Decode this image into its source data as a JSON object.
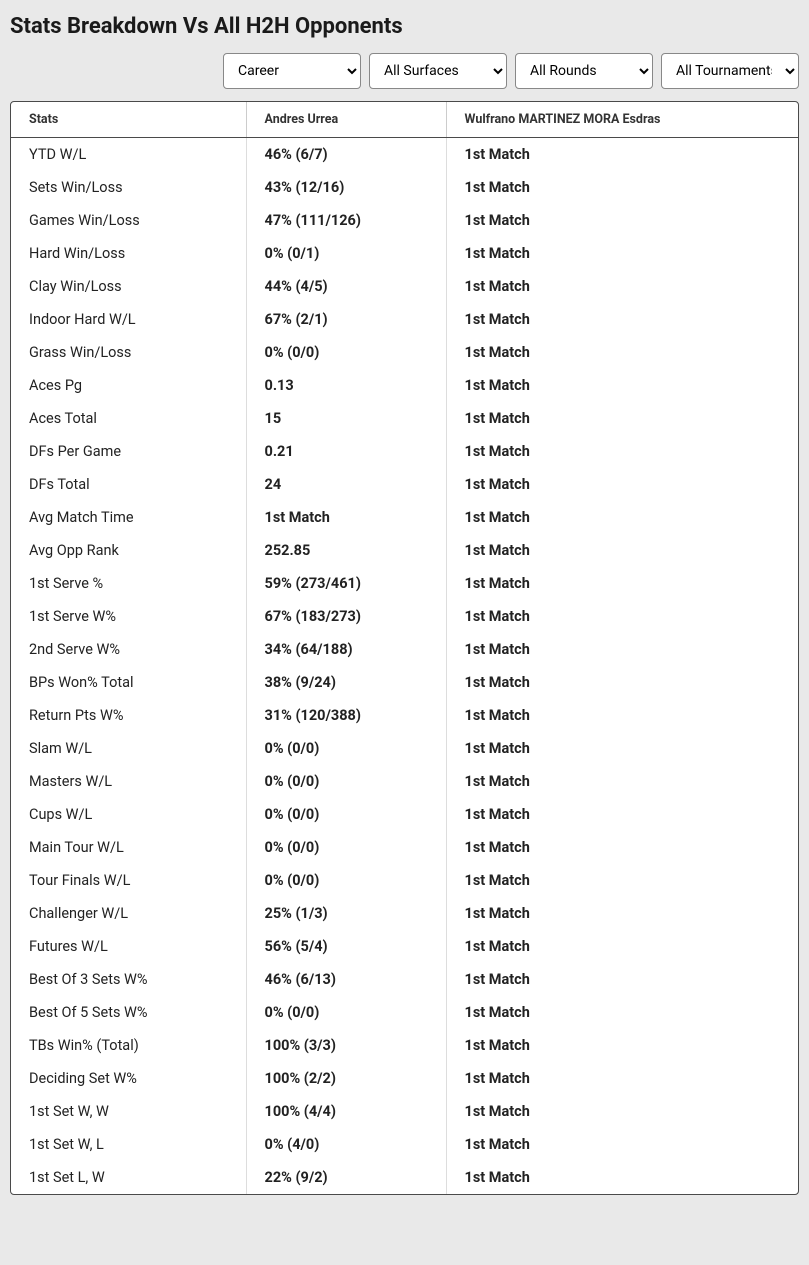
{
  "title": "Stats Breakdown Vs All H2H Opponents",
  "filters": {
    "career": "Career",
    "surfaces": "All Surfaces",
    "rounds": "All Rounds",
    "tournaments": "All Tournaments"
  },
  "headers": {
    "stats": "Stats",
    "player1": "Andres Urrea",
    "player2": "Wulfrano MARTINEZ MORA Esdras"
  },
  "rows": [
    {
      "stat": "YTD W/L",
      "p1": "46% (6/7)",
      "p2": "1st Match"
    },
    {
      "stat": "Sets Win/Loss",
      "p1": "43% (12/16)",
      "p2": "1st Match"
    },
    {
      "stat": "Games Win/Loss",
      "p1": "47% (111/126)",
      "p2": "1st Match"
    },
    {
      "stat": "Hard Win/Loss",
      "p1": "0% (0/1)",
      "p2": "1st Match"
    },
    {
      "stat": "Clay Win/Loss",
      "p1": "44% (4/5)",
      "p2": "1st Match"
    },
    {
      "stat": "Indoor Hard W/L",
      "p1": "67% (2/1)",
      "p2": "1st Match"
    },
    {
      "stat": "Grass Win/Loss",
      "p1": "0% (0/0)",
      "p2": "1st Match"
    },
    {
      "stat": "Aces Pg",
      "p1": "0.13",
      "p2": "1st Match"
    },
    {
      "stat": "Aces Total",
      "p1": "15",
      "p2": "1st Match"
    },
    {
      "stat": "DFs Per Game",
      "p1": "0.21",
      "p2": "1st Match"
    },
    {
      "stat": "DFs Total",
      "p1": "24",
      "p2": "1st Match"
    },
    {
      "stat": "Avg Match Time",
      "p1": "1st Match",
      "p2": "1st Match"
    },
    {
      "stat": "Avg Opp Rank",
      "p1": "252.85",
      "p2": "1st Match"
    },
    {
      "stat": "1st Serve %",
      "p1": "59% (273/461)",
      "p2": "1st Match"
    },
    {
      "stat": "1st Serve W%",
      "p1": "67% (183/273)",
      "p2": "1st Match"
    },
    {
      "stat": "2nd Serve W%",
      "p1": "34% (64/188)",
      "p2": "1st Match"
    },
    {
      "stat": "BPs Won% Total",
      "p1": "38% (9/24)",
      "p2": "1st Match"
    },
    {
      "stat": "Return Pts W%",
      "p1": "31% (120/388)",
      "p2": "1st Match"
    },
    {
      "stat": "Slam W/L",
      "p1": "0% (0/0)",
      "p2": "1st Match"
    },
    {
      "stat": "Masters W/L",
      "p1": "0% (0/0)",
      "p2": "1st Match"
    },
    {
      "stat": "Cups W/L",
      "p1": "0% (0/0)",
      "p2": "1st Match"
    },
    {
      "stat": "Main Tour W/L",
      "p1": "0% (0/0)",
      "p2": "1st Match"
    },
    {
      "stat": "Tour Finals W/L",
      "p1": "0% (0/0)",
      "p2": "1st Match"
    },
    {
      "stat": "Challenger W/L",
      "p1": "25% (1/3)",
      "p2": "1st Match"
    },
    {
      "stat": "Futures W/L",
      "p1": "56% (5/4)",
      "p2": "1st Match"
    },
    {
      "stat": "Best Of 3 Sets W%",
      "p1": "46% (6/13)",
      "p2": "1st Match"
    },
    {
      "stat": "Best Of 5 Sets W%",
      "p1": "0% (0/0)",
      "p2": "1st Match"
    },
    {
      "stat": "TBs Win% (Total)",
      "p1": "100% (3/3)",
      "p2": "1st Match"
    },
    {
      "stat": "Deciding Set W%",
      "p1": "100% (2/2)",
      "p2": "1st Match"
    },
    {
      "stat": "1st Set W, W",
      "p1": "100% (4/4)",
      "p2": "1st Match"
    },
    {
      "stat": "1st Set W, L",
      "p1": "0% (4/0)",
      "p2": "1st Match"
    },
    {
      "stat": "1st Set L, W",
      "p1": "22% (9/2)",
      "p2": "1st Match"
    }
  ]
}
